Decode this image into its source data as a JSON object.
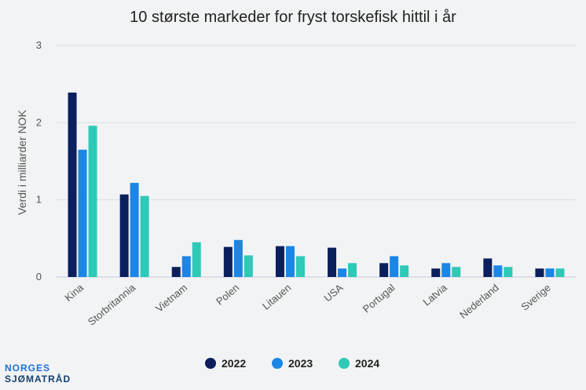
{
  "logo": {
    "line1": "NORGES",
    "line2": "SJØMATRÅD"
  },
  "chart_data": {
    "type": "bar",
    "title": "10 største markeder for fryst torskefisk hittil i år",
    "xlabel": "",
    "ylabel": "Verdi i milliarder NOK",
    "ylim": [
      0,
      3
    ],
    "yticks": [
      "0",
      "1",
      "2",
      "3"
    ],
    "grid": true,
    "legend_position": "bottom",
    "categories": [
      "Kina",
      "Storbritannia",
      "Vietnam",
      "Polen",
      "Litauen",
      "USA",
      "Portugal",
      "Latvia",
      "Nederland",
      "Sverige"
    ],
    "series": [
      {
        "name": "2022",
        "color": "#0b1f5c",
        "values": [
          2.39,
          1.07,
          0.13,
          0.39,
          0.4,
          0.38,
          0.18,
          0.11,
          0.24,
          0.11
        ]
      },
      {
        "name": "2023",
        "color": "#1b86e6",
        "values": [
          1.65,
          1.22,
          0.27,
          0.48,
          0.4,
          0.11,
          0.27,
          0.18,
          0.15,
          0.11
        ]
      },
      {
        "name": "2024",
        "color": "#2ec9b7",
        "values": [
          1.96,
          1.05,
          0.45,
          0.28,
          0.27,
          0.18,
          0.15,
          0.13,
          0.13,
          0.11
        ]
      }
    ]
  }
}
